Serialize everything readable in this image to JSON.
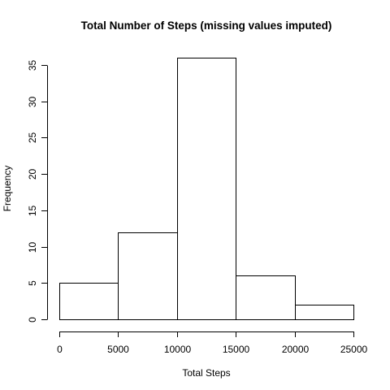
{
  "chart_data": {
    "type": "bar",
    "subtype": "histogram",
    "title": "Total Number of Steps (missing values imputed)",
    "xlabel": "Total Steps",
    "ylabel": "Frequency",
    "bins": [
      {
        "start": 0,
        "end": 5000,
        "count": 5
      },
      {
        "start": 5000,
        "end": 10000,
        "count": 12
      },
      {
        "start": 10000,
        "end": 15000,
        "count": 36
      },
      {
        "start": 15000,
        "end": 20000,
        "count": 6
      },
      {
        "start": 20000,
        "end": 25000,
        "count": 2
      }
    ],
    "xlim": [
      0,
      25000
    ],
    "ylim": [
      0,
      36
    ],
    "xticks": [
      0,
      5000,
      10000,
      15000,
      20000,
      25000
    ],
    "xtick_labels": [
      "0",
      "5000",
      "10000",
      "15000",
      "20000",
      "25000"
    ],
    "yticks": [
      0,
      5,
      10,
      15,
      20,
      25,
      30,
      35
    ],
    "ytick_labels": [
      "0",
      "5",
      "10",
      "15",
      "20",
      "25",
      "30",
      "35"
    ],
    "grid": false,
    "legend": "none",
    "bar_fill": "#ffffff",
    "bar_stroke": "#000000"
  }
}
